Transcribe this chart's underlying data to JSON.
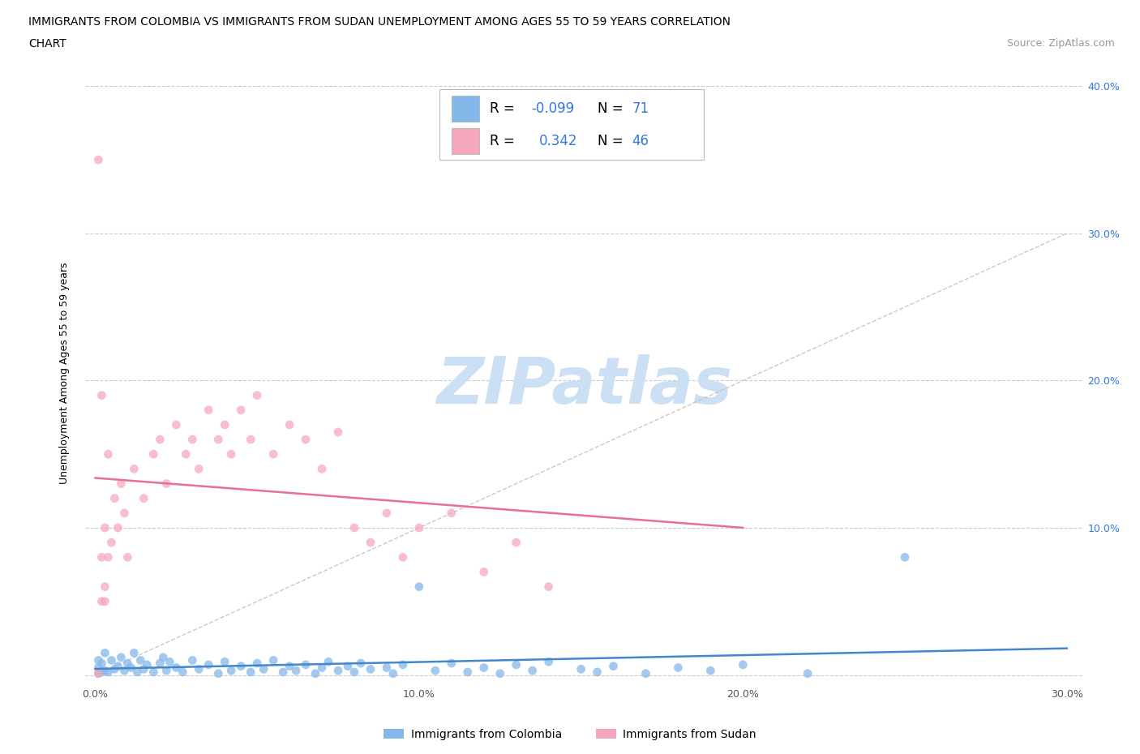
{
  "title_line1": "IMMIGRANTS FROM COLOMBIA VS IMMIGRANTS FROM SUDAN UNEMPLOYMENT AMONG AGES 55 TO 59 YEARS CORRELATION",
  "title_line2": "CHART",
  "source_text": "Source: ZipAtlas.com",
  "ylabel": "Unemployment Among Ages 55 to 59 years",
  "xlim": [
    -0.003,
    0.305
  ],
  "ylim": [
    -0.005,
    0.415
  ],
  "xticks": [
    0.0,
    0.05,
    0.1,
    0.15,
    0.2,
    0.25,
    0.3
  ],
  "yticks": [
    0.0,
    0.1,
    0.2,
    0.3,
    0.4
  ],
  "xtick_labels_show": [
    "0.0%",
    "",
    "10.0%",
    "",
    "20.0%",
    "",
    "30.0%"
  ],
  "ytick_labels_show": [
    "",
    "10.0%",
    "20.0%",
    "30.0%",
    "40.0%"
  ],
  "colombia_color": "#85b8ea",
  "sudan_color": "#f5a8bc",
  "colombia_line_color": "#4488cc",
  "sudan_line_color": "#e87090",
  "diag_line_color": "#ccbbbb",
  "colombia_R": -0.099,
  "colombia_N": 71,
  "sudan_R": 0.342,
  "sudan_N": 46,
  "watermark_text": "ZIPatlas",
  "watermark_color": "#cce0f5",
  "legend_label_colombia": "Immigrants from Colombia",
  "legend_label_sudan": "Immigrants from Sudan",
  "stat_color": "#3377dd",
  "colombia_x": [
    0.001,
    0.001,
    0.001,
    0.002,
    0.002,
    0.003,
    0.003,
    0.004,
    0.005,
    0.006,
    0.007,
    0.008,
    0.009,
    0.01,
    0.011,
    0.012,
    0.013,
    0.014,
    0.015,
    0.016,
    0.018,
    0.02,
    0.021,
    0.022,
    0.023,
    0.025,
    0.027,
    0.03,
    0.032,
    0.035,
    0.038,
    0.04,
    0.042,
    0.045,
    0.048,
    0.05,
    0.052,
    0.055,
    0.058,
    0.06,
    0.062,
    0.065,
    0.068,
    0.07,
    0.072,
    0.075,
    0.078,
    0.08,
    0.082,
    0.085,
    0.09,
    0.092,
    0.095,
    0.1,
    0.105,
    0.11,
    0.115,
    0.12,
    0.125,
    0.13,
    0.135,
    0.14,
    0.15,
    0.155,
    0.16,
    0.17,
    0.18,
    0.19,
    0.2,
    0.22,
    0.25
  ],
  "colombia_y": [
    0.001,
    0.005,
    0.01,
    0.002,
    0.008,
    0.003,
    0.015,
    0.002,
    0.01,
    0.004,
    0.006,
    0.012,
    0.003,
    0.008,
    0.005,
    0.015,
    0.002,
    0.01,
    0.004,
    0.007,
    0.002,
    0.008,
    0.012,
    0.003,
    0.009,
    0.005,
    0.002,
    0.01,
    0.004,
    0.007,
    0.001,
    0.009,
    0.003,
    0.006,
    0.002,
    0.008,
    0.004,
    0.01,
    0.002,
    0.006,
    0.003,
    0.007,
    0.001,
    0.005,
    0.009,
    0.003,
    0.006,
    0.002,
    0.008,
    0.004,
    0.005,
    0.001,
    0.007,
    0.06,
    0.003,
    0.008,
    0.002,
    0.005,
    0.001,
    0.007,
    0.003,
    0.009,
    0.004,
    0.002,
    0.006,
    0.001,
    0.005,
    0.003,
    0.007,
    0.001,
    0.08
  ],
  "sudan_x": [
    0.001,
    0.001,
    0.002,
    0.002,
    0.003,
    0.003,
    0.004,
    0.004,
    0.005,
    0.006,
    0.007,
    0.008,
    0.009,
    0.01,
    0.012,
    0.015,
    0.018,
    0.02,
    0.022,
    0.025,
    0.028,
    0.03,
    0.032,
    0.035,
    0.038,
    0.04,
    0.042,
    0.045,
    0.048,
    0.05,
    0.055,
    0.06,
    0.065,
    0.07,
    0.075,
    0.08,
    0.085,
    0.09,
    0.095,
    0.1,
    0.11,
    0.12,
    0.13,
    0.14,
    0.002,
    0.003
  ],
  "sudan_y": [
    0.001,
    0.35,
    0.05,
    0.19,
    0.06,
    0.1,
    0.08,
    0.15,
    0.09,
    0.12,
    0.1,
    0.13,
    0.11,
    0.08,
    0.14,
    0.12,
    0.15,
    0.16,
    0.13,
    0.17,
    0.15,
    0.16,
    0.14,
    0.18,
    0.16,
    0.17,
    0.15,
    0.18,
    0.16,
    0.19,
    0.15,
    0.17,
    0.16,
    0.14,
    0.165,
    0.1,
    0.09,
    0.11,
    0.08,
    0.1,
    0.11,
    0.07,
    0.09,
    0.06,
    0.08,
    0.05
  ]
}
